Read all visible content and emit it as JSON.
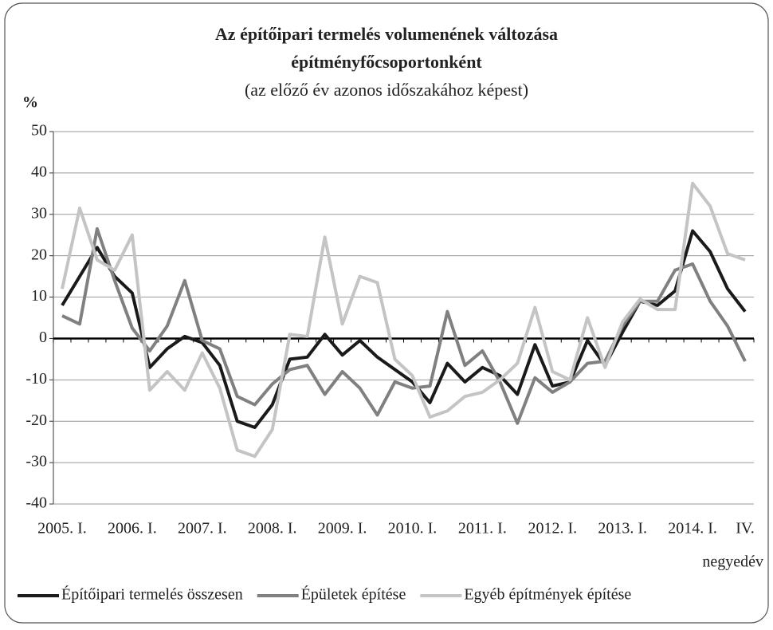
{
  "chart_data": {
    "type": "line",
    "title": [
      "Az építőipari termelés volumenének változása",
      "építményfőcsoportonként"
    ],
    "subtitle": "(az előző év azonos időszakához képest)",
    "y_label": "%",
    "x_label": "negyedév",
    "categories": [
      "2005. I.",
      null,
      null,
      null,
      "2006. I.",
      null,
      null,
      null,
      "2007. I.",
      null,
      null,
      null,
      "2008. I.",
      null,
      null,
      null,
      "2009. I.",
      null,
      null,
      null,
      "2010. I.",
      null,
      null,
      null,
      "2011. I.",
      null,
      null,
      null,
      "2012. I.",
      null,
      null,
      null,
      "2013. I.",
      null,
      null,
      null,
      "2014. I.",
      null,
      null,
      "IV."
    ],
    "series": [
      {
        "name": "Építőipari termelés összesen",
        "color": "#1a1a1a",
        "values": [
          8,
          15,
          22,
          15,
          11,
          -7,
          -2.5,
          0.5,
          -1,
          -6.5,
          -20,
          -21.5,
          -16,
          -5,
          -4.5,
          1,
          -4,
          -0.5,
          -4.5,
          -7.5,
          -10.5,
          -15.5,
          -6,
          -10.5,
          -7,
          -9,
          -13.5,
          -1.5,
          -11.5,
          -10.5,
          -0.5,
          -6.5,
          1.5,
          9,
          8,
          11.5,
          26,
          21,
          12,
          6.5
        ]
      },
      {
        "name": "Épületek építése",
        "color": "#808080",
        "values": [
          5.5,
          3.5,
          26.5,
          14,
          2.5,
          -3,
          3,
          14,
          -0.5,
          -2.5,
          -14,
          -16,
          -11,
          -7.5,
          -6.5,
          -13.5,
          -8,
          -12,
          -18.5,
          -10.5,
          -12,
          -11.5,
          6.5,
          -6.5,
          -3,
          -10.5,
          -20.5,
          -9.5,
          -13,
          -10.5,
          -6,
          -5.5,
          3,
          9,
          9,
          16.5,
          18,
          9,
          3,
          -5.5
        ]
      },
      {
        "name": "Egyéb építmények építése",
        "color": "#c4c4c4",
        "values": [
          12,
          31.5,
          19,
          16.5,
          25,
          -12.5,
          -8,
          -12.5,
          -3.5,
          -12,
          -27,
          -28.5,
          -22,
          1,
          0.5,
          24.5,
          3.5,
          15,
          13.5,
          -5,
          -9,
          -19,
          -17.5,
          -14,
          -13,
          -10,
          -6,
          7.5,
          -8,
          -10,
          5,
          -7,
          4,
          9.5,
          7,
          7,
          37.5,
          32,
          20.5,
          19
        ]
      }
    ],
    "ylim": [
      -40,
      50
    ],
    "yticks": [
      -40,
      -30,
      -20,
      -10,
      0,
      10,
      20,
      30,
      40,
      50
    ],
    "grid": true
  }
}
